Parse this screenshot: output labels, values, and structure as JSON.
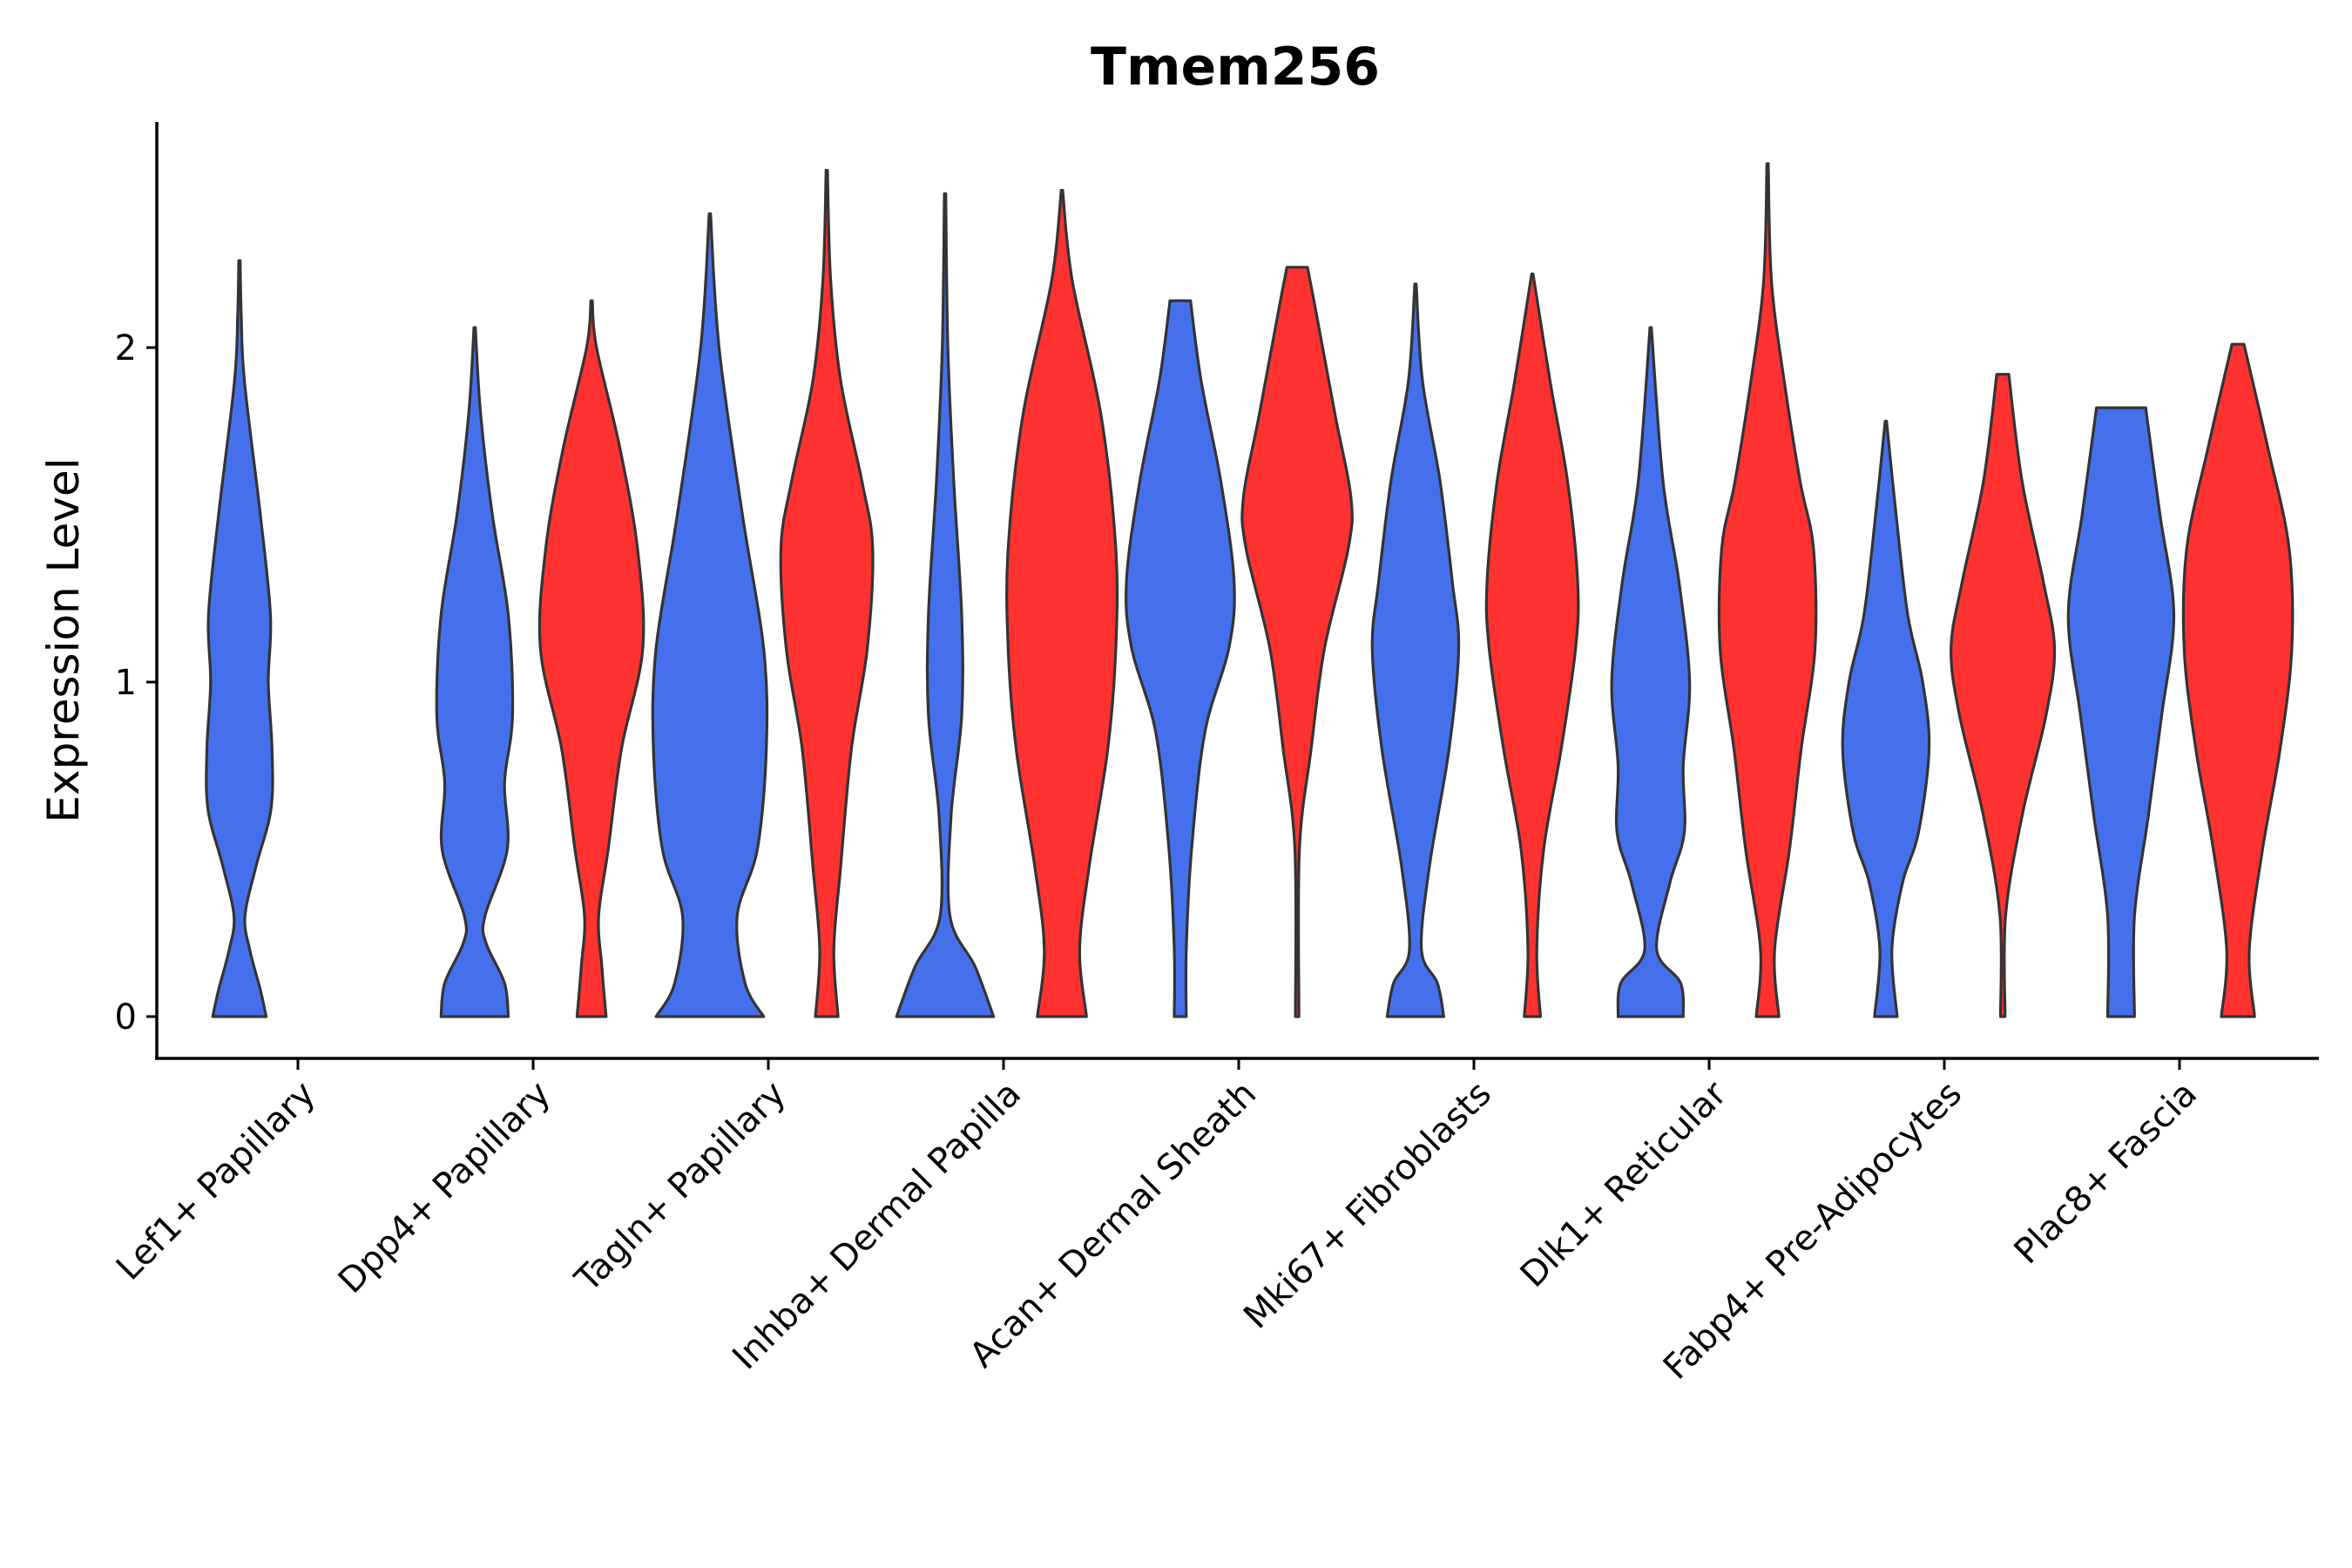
{
  "chart_data": {
    "type": "violin",
    "title": "Tmem256",
    "ylabel": "Expression Level",
    "xlabel": "",
    "ylim": [
      -0.13,
      2.68
    ],
    "yticks": [
      0,
      1,
      2
    ],
    "colors": {
      "group_a": "#4670EB",
      "group_b": "#FF3232",
      "outline": "#333333"
    },
    "categories": [
      "Lef1+ Papillary",
      "Dpp4+ Papillary",
      "Tagln+ Papillary",
      "Inhba+ Dermal Papilla",
      "Acan+ Dermal Sheath",
      "Mki67+ Fibroblasts",
      "Dlk1+ Reticular",
      "Fabp4+ Pre-Adipocytes",
      "Plac8+ Fascia"
    ],
    "violins": [
      {
        "category": "Lef1+ Papillary",
        "group": "blue",
        "max": 2.26,
        "profile": [
          [
            0,
            0.49
          ],
          [
            0.08,
            0.38
          ],
          [
            0.2,
            0.18
          ],
          [
            0.3,
            0.09
          ],
          [
            0.45,
            0.3
          ],
          [
            0.62,
            0.58
          ],
          [
            0.8,
            0.6
          ],
          [
            1.0,
            0.53
          ],
          [
            1.2,
            0.57
          ],
          [
            1.5,
            0.38
          ],
          [
            1.9,
            0.08
          ],
          [
            2.1,
            0.02
          ],
          [
            2.26,
            0.0
          ]
        ]
      },
      {
        "category": "Dpp4+ Papillary",
        "group": "blue",
        "max": 2.06,
        "profile": [
          [
            0,
            0.62
          ],
          [
            0.1,
            0.55
          ],
          [
            0.22,
            0.2
          ],
          [
            0.3,
            0.18
          ],
          [
            0.5,
            0.6
          ],
          [
            0.7,
            0.55
          ],
          [
            0.9,
            0.7
          ],
          [
            1.2,
            0.62
          ],
          [
            1.5,
            0.32
          ],
          [
            1.8,
            0.1
          ],
          [
            2.06,
            0.0
          ]
        ]
      },
      {
        "category": "Dpp4+ Papillary",
        "group": "red",
        "max": 2.14,
        "profile": [
          [
            0,
            0.26
          ],
          [
            0.15,
            0.18
          ],
          [
            0.3,
            0.12
          ],
          [
            0.5,
            0.3
          ],
          [
            0.8,
            0.55
          ],
          [
            1.1,
            0.95
          ],
          [
            1.4,
            0.85
          ],
          [
            1.7,
            0.52
          ],
          [
            2.0,
            0.08
          ],
          [
            2.14,
            0.0
          ]
        ]
      },
      {
        "category": "Tagln+ Papillary",
        "group": "blue",
        "max": 2.4,
        "profile": [
          [
            0,
            1.0
          ],
          [
            0.1,
            0.65
          ],
          [
            0.3,
            0.5
          ],
          [
            0.5,
            0.88
          ],
          [
            0.8,
            1.05
          ],
          [
            1.1,
            1.0
          ],
          [
            1.5,
            0.6
          ],
          [
            2.0,
            0.16
          ],
          [
            2.4,
            0.0
          ]
        ]
      },
      {
        "category": "Tagln+ Papillary",
        "group": "red",
        "max": 2.53,
        "profile": [
          [
            0,
            0.2
          ],
          [
            0.2,
            0.12
          ],
          [
            0.45,
            0.25
          ],
          [
            0.8,
            0.45
          ],
          [
            1.1,
            0.75
          ],
          [
            1.4,
            0.85
          ],
          [
            1.6,
            0.65
          ],
          [
            1.9,
            0.25
          ],
          [
            2.2,
            0.06
          ],
          [
            2.53,
            0.0
          ]
        ]
      },
      {
        "category": "Inhba+ Dermal Papilla",
        "group": "blue",
        "max": 2.46,
        "profile": [
          [
            0,
            0.9
          ],
          [
            0.15,
            0.55
          ],
          [
            0.3,
            0.08
          ],
          [
            0.6,
            0.1
          ],
          [
            0.9,
            0.3
          ],
          [
            1.2,
            0.3
          ],
          [
            1.6,
            0.15
          ],
          [
            2.0,
            0.04
          ],
          [
            2.46,
            0.0
          ]
        ]
      },
      {
        "category": "Inhba+ Dermal Papilla",
        "group": "red",
        "max": 2.47,
        "profile": [
          [
            0,
            0.45
          ],
          [
            0.2,
            0.32
          ],
          [
            0.45,
            0.5
          ],
          [
            0.8,
            0.85
          ],
          [
            1.1,
            1.0
          ],
          [
            1.4,
            1.0
          ],
          [
            1.8,
            0.72
          ],
          [
            2.2,
            0.18
          ],
          [
            2.47,
            0.0
          ]
        ]
      },
      {
        "category": "Acan+ Dermal Sheath",
        "group": "blue",
        "max": 2.14,
        "profile": [
          [
            0,
            0.1
          ],
          [
            0.2,
            0.1
          ],
          [
            0.5,
            0.2
          ],
          [
            0.85,
            0.45
          ],
          [
            1.1,
            0.9
          ],
          [
            1.3,
            1.0
          ],
          [
            1.6,
            0.75
          ],
          [
            1.9,
            0.38
          ],
          [
            2.14,
            0.18
          ]
        ]
      },
      {
        "category": "Acan+ Dermal Sheath",
        "group": "red",
        "max": 2.24,
        "profile": [
          [
            0,
            0.02
          ],
          [
            0.5,
            0.03
          ],
          [
            0.8,
            0.25
          ],
          [
            1.1,
            0.5
          ],
          [
            1.4,
            0.95
          ],
          [
            1.55,
            1.0
          ],
          [
            1.8,
            0.7
          ],
          [
            2.1,
            0.35
          ],
          [
            2.24,
            0.18
          ]
        ]
      },
      {
        "category": "Mki67+ Fibroblasts",
        "group": "blue",
        "max": 2.19,
        "profile": [
          [
            0,
            0.52
          ],
          [
            0.1,
            0.4
          ],
          [
            0.2,
            0.1
          ],
          [
            0.45,
            0.25
          ],
          [
            0.8,
            0.62
          ],
          [
            1.1,
            0.8
          ],
          [
            1.3,
            0.68
          ],
          [
            1.6,
            0.45
          ],
          [
            1.9,
            0.12
          ],
          [
            2.19,
            0.0
          ]
        ]
      },
      {
        "category": "Mki67+ Fibroblasts",
        "group": "red",
        "max": 2.22,
        "profile": [
          [
            0,
            0.14
          ],
          [
            0.2,
            0.07
          ],
          [
            0.5,
            0.2
          ],
          [
            0.8,
            0.53
          ],
          [
            1.1,
            0.8
          ],
          [
            1.3,
            0.84
          ],
          [
            1.6,
            0.65
          ],
          [
            1.9,
            0.32
          ],
          [
            2.22,
            0.0
          ]
        ]
      },
      {
        "category": "Dlk1+ Reticular",
        "group": "blue",
        "max": 2.06,
        "profile": [
          [
            0,
            0.6
          ],
          [
            0.1,
            0.55
          ],
          [
            0.2,
            0.1
          ],
          [
            0.4,
            0.35
          ],
          [
            0.55,
            0.62
          ],
          [
            0.75,
            0.6
          ],
          [
            1.0,
            0.72
          ],
          [
            1.3,
            0.52
          ],
          [
            1.6,
            0.22
          ],
          [
            2.06,
            0.0
          ]
        ]
      },
      {
        "category": "Dlk1+ Reticular",
        "group": "red",
        "max": 2.55,
        "profile": [
          [
            0,
            0.2
          ],
          [
            0.2,
            0.12
          ],
          [
            0.5,
            0.4
          ],
          [
            0.8,
            0.62
          ],
          [
            1.1,
            0.88
          ],
          [
            1.4,
            0.85
          ],
          [
            1.6,
            0.6
          ],
          [
            1.9,
            0.3
          ],
          [
            2.2,
            0.06
          ],
          [
            2.55,
            0.0
          ]
        ]
      },
      {
        "category": "Fabp4+ Pre-Adipocytes",
        "group": "blue",
        "max": 1.78,
        "profile": [
          [
            0,
            0.2
          ],
          [
            0.2,
            0.1
          ],
          [
            0.4,
            0.3
          ],
          [
            0.55,
            0.6
          ],
          [
            0.8,
            0.8
          ],
          [
            1.0,
            0.68
          ],
          [
            1.2,
            0.4
          ],
          [
            1.5,
            0.18
          ],
          [
            1.78,
            0.0
          ]
        ]
      },
      {
        "category": "Fabp4+ Pre-Adipocytes",
        "group": "red",
        "max": 1.92,
        "profile": [
          [
            0,
            0.03
          ],
          [
            0.3,
            0.04
          ],
          [
            0.6,
            0.35
          ],
          [
            0.9,
            0.8
          ],
          [
            1.1,
            0.96
          ],
          [
            1.3,
            0.75
          ],
          [
            1.6,
            0.35
          ],
          [
            1.92,
            0.1
          ]
        ]
      },
      {
        "category": "Plac8+ Fascia",
        "group": "blue",
        "max": 1.82,
        "profile": [
          [
            0,
            0.24
          ],
          [
            0.3,
            0.24
          ],
          [
            0.6,
            0.5
          ],
          [
            0.9,
            0.75
          ],
          [
            1.2,
            0.98
          ],
          [
            1.5,
            0.72
          ],
          [
            1.82,
            0.45
          ]
        ]
      },
      {
        "category": "Plac8+ Fascia",
        "group": "red",
        "max": 2.01,
        "profile": [
          [
            0,
            0.3
          ],
          [
            0.2,
            0.2
          ],
          [
            0.5,
            0.45
          ],
          [
            0.8,
            0.78
          ],
          [
            1.1,
            1.0
          ],
          [
            1.4,
            0.95
          ],
          [
            1.7,
            0.55
          ],
          [
            2.01,
            0.1
          ]
        ]
      }
    ]
  }
}
